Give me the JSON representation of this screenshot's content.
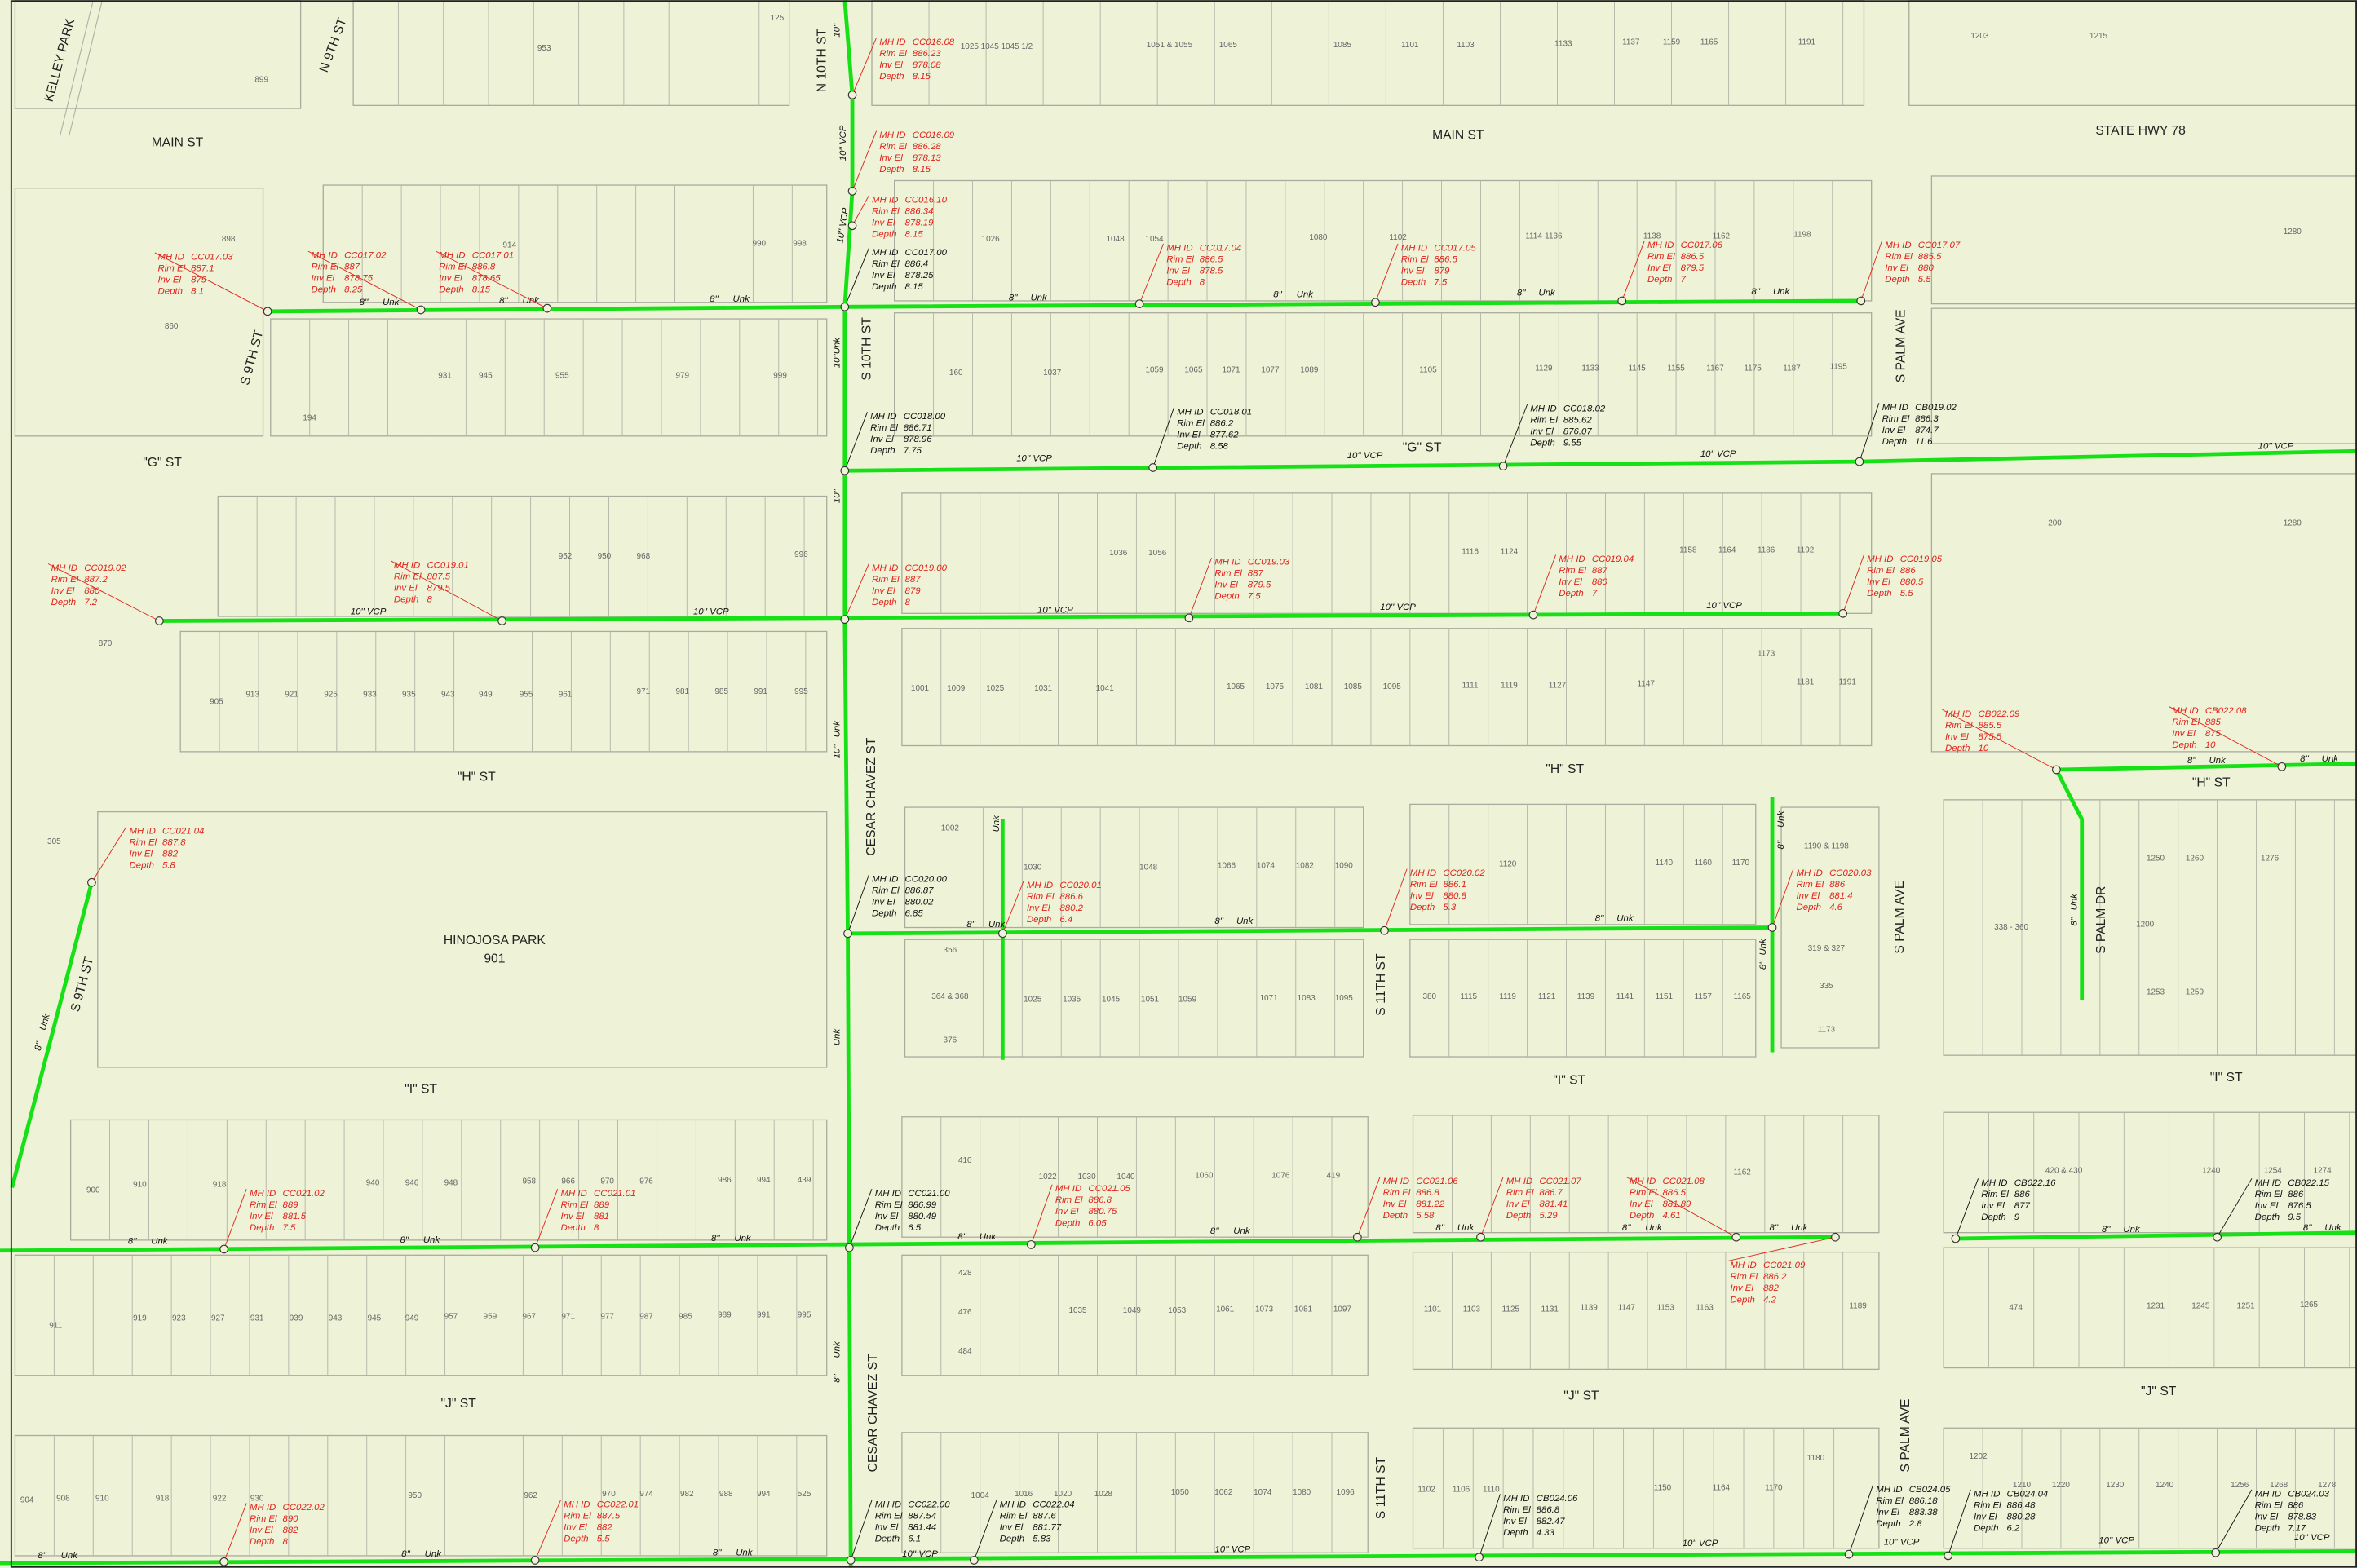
{
  "streets": [
    "MAIN ST",
    "MAIN ST",
    "STATE HWY 78",
    "N 10TH ST",
    "N 9TH ST",
    "KELLEY PARK",
    "S 9TH ST",
    "\"G\" ST",
    "\"G\" ST",
    "S 10TH ST",
    "S PALM AVE",
    "S PALM AVE",
    "S PALM AVE",
    "\"H\" ST",
    "\"H\" ST",
    "\"H\" ST",
    "CESAR CHAVEZ ST",
    "CESAR CHAVEZ ST",
    "HINOJOSA PARK",
    "901",
    "S 9TH ST",
    "\"I\" ST",
    "\"I\" ST",
    "\"I\" ST",
    "S 11TH ST",
    "S 11TH ST",
    "S PALM DR",
    "\"J\" ST",
    "\"J\" ST",
    "\"J\" ST"
  ],
  "manhole_fields": [
    "MH ID",
    "Rim El",
    "Inv El",
    "Depth"
  ],
  "manholes": [
    {
      "id": "CC016.08",
      "rim": 886.23,
      "inv": 878.08,
      "depth": 8.15,
      "color": "#e0241c"
    },
    {
      "id": "CC016.09",
      "rim": 886.28,
      "inv": 878.13,
      "depth": 8.15,
      "color": "#e0241c"
    },
    {
      "id": "CC016.10",
      "rim": 886.34,
      "inv": 878.19,
      "depth": 8.15,
      "color": "#e0241c"
    },
    {
      "id": "CC017.00",
      "rim": 886.4,
      "inv": 878.25,
      "depth": 8.15,
      "color": "#111111"
    },
    {
      "id": "CC017.03",
      "rim": 887.1,
      "inv": 879,
      "depth": 8.1,
      "color": "#e0241c"
    },
    {
      "id": "CC017.02",
      "rim": 887,
      "inv": 878.75,
      "depth": 8.25,
      "color": "#e0241c"
    },
    {
      "id": "CC017.01",
      "rim": 886.8,
      "inv": 878.65,
      "depth": 8.15,
      "color": "#e0241c"
    },
    {
      "id": "CC017.04",
      "rim": 886.5,
      "inv": 878.5,
      "depth": 8,
      "color": "#e0241c"
    },
    {
      "id": "CC017.05",
      "rim": 886.5,
      "inv": 879,
      "depth": 7.5,
      "color": "#e0241c"
    },
    {
      "id": "CC017.06",
      "rim": 886.5,
      "inv": 879.5,
      "depth": 7,
      "color": "#e0241c"
    },
    {
      "id": "CC017.07",
      "rim": 885.5,
      "inv": 880,
      "depth": 5.5,
      "color": "#e0241c"
    },
    {
      "id": "CC018.00",
      "rim": 886.71,
      "inv": 878.96,
      "depth": 7.75,
      "color": "#111111"
    },
    {
      "id": "CC018.01",
      "rim": 886.2,
      "inv": 877.62,
      "depth": 8.58,
      "color": "#111111"
    },
    {
      "id": "CC018.02",
      "rim": 885.62,
      "inv": 876.07,
      "depth": 9.55,
      "color": "#111111"
    },
    {
      "id": "CB019.02",
      "rim": 886.3,
      "inv": 874.7,
      "depth": 11.6,
      "color": "#111111"
    },
    {
      "id": "CC019.02",
      "rim": 887.2,
      "inv": 880,
      "depth": 7.2,
      "color": "#e0241c"
    },
    {
      "id": "CC019.01",
      "rim": 887.5,
      "inv": 879.5,
      "depth": 8,
      "color": "#e0241c"
    },
    {
      "id": "CC019.00",
      "rim": 887,
      "inv": 879,
      "depth": 8,
      "color": "#e0241c"
    },
    {
      "id": "CC019.03",
      "rim": 887,
      "inv": 879.5,
      "depth": 7.5,
      "color": "#e0241c"
    },
    {
      "id": "CC019.04",
      "rim": 887,
      "inv": 880,
      "depth": 7,
      "color": "#e0241c"
    },
    {
      "id": "CC019.05",
      "rim": 886,
      "inv": 880.5,
      "depth": 5.5,
      "color": "#e0241c"
    },
    {
      "id": "CC020.00",
      "rim": 886.87,
      "inv": 880.02,
      "depth": 6.85,
      "color": "#111111"
    },
    {
      "id": "CC020.01",
      "rim": 886.6,
      "inv": 880.2,
      "depth": 6.4,
      "color": "#e0241c"
    },
    {
      "id": "CC020.02",
      "rim": 886.1,
      "inv": 880.8,
      "depth": 5.3,
      "color": "#e0241c"
    },
    {
      "id": "CC020.03",
      "rim": 886,
      "inv": 881.4,
      "depth": 4.6,
      "color": "#e0241c"
    },
    {
      "id": "CC021.04",
      "rim": 887.8,
      "inv": 882,
      "depth": 5.8,
      "color": "#e0241c"
    },
    {
      "id": "CB022.09",
      "rim": 885.5,
      "inv": 875.5,
      "depth": 10,
      "color": "#e0241c"
    },
    {
      "id": "CB022.08",
      "rim": 885,
      "inv": 875,
      "depth": 10,
      "color": "#e0241c"
    },
    {
      "id": "CC021.00",
      "rim": 886.99,
      "inv": 880.49,
      "depth": 6.5,
      "color": "#111111"
    },
    {
      "id": "CC021.02",
      "rim": 889,
      "inv": 881.5,
      "depth": 7.5,
      "color": "#e0241c"
    },
    {
      "id": "CC021.01",
      "rim": 889,
      "inv": 881,
      "depth": 8,
      "color": "#e0241c"
    },
    {
      "id": "CC021.05",
      "rim": 886.8,
      "inv": 880.75,
      "depth": 6.05,
      "color": "#e0241c"
    },
    {
      "id": "CC021.06",
      "rim": 886.8,
      "inv": 881.22,
      "depth": 5.58,
      "color": "#e0241c"
    },
    {
      "id": "CC021.07",
      "rim": 886.7,
      "inv": 881.41,
      "depth": 5.29,
      "color": "#e0241c"
    },
    {
      "id": "CC021.08",
      "rim": 886.5,
      "inv": 881.89,
      "depth": 4.61,
      "color": "#e0241c"
    },
    {
      "id": "CC021.09",
      "rim": 886.2,
      "inv": 882,
      "depth": 4.2,
      "color": "#e0241c"
    },
    {
      "id": "CB022.16",
      "rim": 886,
      "inv": 877,
      "depth": 9,
      "color": "#111111"
    },
    {
      "id": "CB022.15",
      "rim": 886,
      "inv": 876.5,
      "depth": 9.5,
      "color": "#111111"
    },
    {
      "id": "CC022.02",
      "rim": 890,
      "inv": 882,
      "depth": 8,
      "color": "#e0241c"
    },
    {
      "id": "CC022.01",
      "rim": 887.5,
      "inv": 882,
      "depth": 5.5,
      "color": "#e0241c"
    },
    {
      "id": "CC022.00",
      "rim": 887.54,
      "inv": 881.44,
      "depth": 6.1,
      "color": "#111111"
    },
    {
      "id": "CC022.04",
      "rim": 887.6,
      "inv": 881.77,
      "depth": 5.83,
      "color": "#111111"
    },
    {
      "id": "CB024.06",
      "rim": 886.8,
      "inv": 882.47,
      "depth": 4.33,
      "color": "#111111"
    },
    {
      "id": "CB024.05",
      "rim": 886.18,
      "inv": 883.38,
      "depth": 2.8,
      "color": "#111111"
    },
    {
      "id": "CB024.04",
      "rim": 886.48,
      "inv": 880.28,
      "depth": 6.2,
      "color": "#111111"
    },
    {
      "id": "CB024.03",
      "rim": 886,
      "inv": 878.83,
      "depth": 7.17,
      "color": "#111111"
    }
  ],
  "pipe_labels": [
    "8''",
    "Unk",
    "10''",
    "VCP",
    "10'' VCP"
  ],
  "parcels": [
    "953",
    "899",
    "125",
    "1025 1045 1045 1/2",
    "1051 & 1055",
    "1065",
    "1085",
    "1101",
    "1103",
    "1133",
    "1137",
    "1159",
    "1165",
    "1191",
    "1203",
    "1215",
    "898",
    "914",
    "990",
    "998",
    "1026",
    "1048",
    "1054",
    "1080",
    "1102",
    "1114-1136",
    "1138",
    "1162",
    "1198",
    "1280",
    "860",
    "194",
    "931",
    "945",
    "955",
    "979",
    "999",
    "160",
    "1037",
    "1059",
    "1065",
    "1071",
    "1077",
    "1089",
    "1105",
    "1129",
    "1133",
    "1145",
    "1155",
    "1167",
    "1175",
    "1187",
    "1195",
    "870",
    "952",
    "950",
    "968",
    "996",
    "1036",
    "1056",
    "1116",
    "1124",
    "1158",
    "1164",
    "1186",
    "1192",
    "200",
    "1280",
    "905",
    "913",
    "921",
    "925",
    "933",
    "935",
    "943",
    "949",
    "955",
    "961",
    "971",
    "981",
    "985",
    "991",
    "995",
    "1001",
    "1009",
    "1025",
    "1031",
    "1041",
    "1065",
    "1075",
    "1081",
    "1085",
    "1095",
    "1111",
    "1119",
    "1127",
    "1147",
    "1181",
    "1191",
    "1173",
    "305",
    "1002",
    "356",
    "364 & 368",
    "376",
    "1030",
    "1048",
    "1066",
    "1074",
    "1082",
    "1090",
    "1120",
    "1140",
    "1160",
    "1170",
    "1190 & 1198",
    "319 & 327",
    "335",
    "1173",
    "338 - 360",
    "1200",
    "1250",
    "1260",
    "1276",
    "1253",
    "1259",
    "1025",
    "1035",
    "1045",
    "1051",
    "1059",
    "1071",
    "1083",
    "1095",
    "380",
    "1115",
    "1119",
    "1121",
    "1139",
    "1141",
    "1151",
    "1157",
    "1165",
    "900",
    "910",
    "918",
    "940",
    "946",
    "948",
    "958",
    "966",
    "970",
    "976",
    "986",
    "994",
    "439",
    "410",
    "1022",
    "1030",
    "1040",
    "1060",
    "1076",
    "419",
    "1162",
    "1240",
    "1254",
    "1274",
    "420 & 430",
    "911",
    "919",
    "923",
    "927",
    "931",
    "939",
    "943",
    "945",
    "949",
    "957",
    "959",
    "967",
    "971",
    "977",
    "987",
    "985",
    "989",
    "991",
    "995",
    "428",
    "476",
    "484",
    "1035",
    "1049",
    "1053",
    "1061",
    "1073",
    "1081",
    "1097",
    "1101",
    "1103",
    "1125",
    "1131",
    "1139",
    "1147",
    "1153",
    "1163",
    "1189",
    "474",
    "1231",
    "1245",
    "1251",
    "1265",
    "904",
    "908",
    "910",
    "918",
    "922",
    "930",
    "950",
    "962",
    "970",
    "974",
    "982",
    "988",
    "994",
    "525",
    "1004",
    "1016",
    "1020",
    "1028",
    "1050",
    "1062",
    "1074",
    "1080",
    "1096",
    "1102",
    "1106",
    "1110",
    "1150",
    "1164",
    "1170",
    "1180",
    "1202",
    "1210",
    "1220",
    "1230",
    "1240",
    "1256",
    "1268",
    "1278"
  ]
}
